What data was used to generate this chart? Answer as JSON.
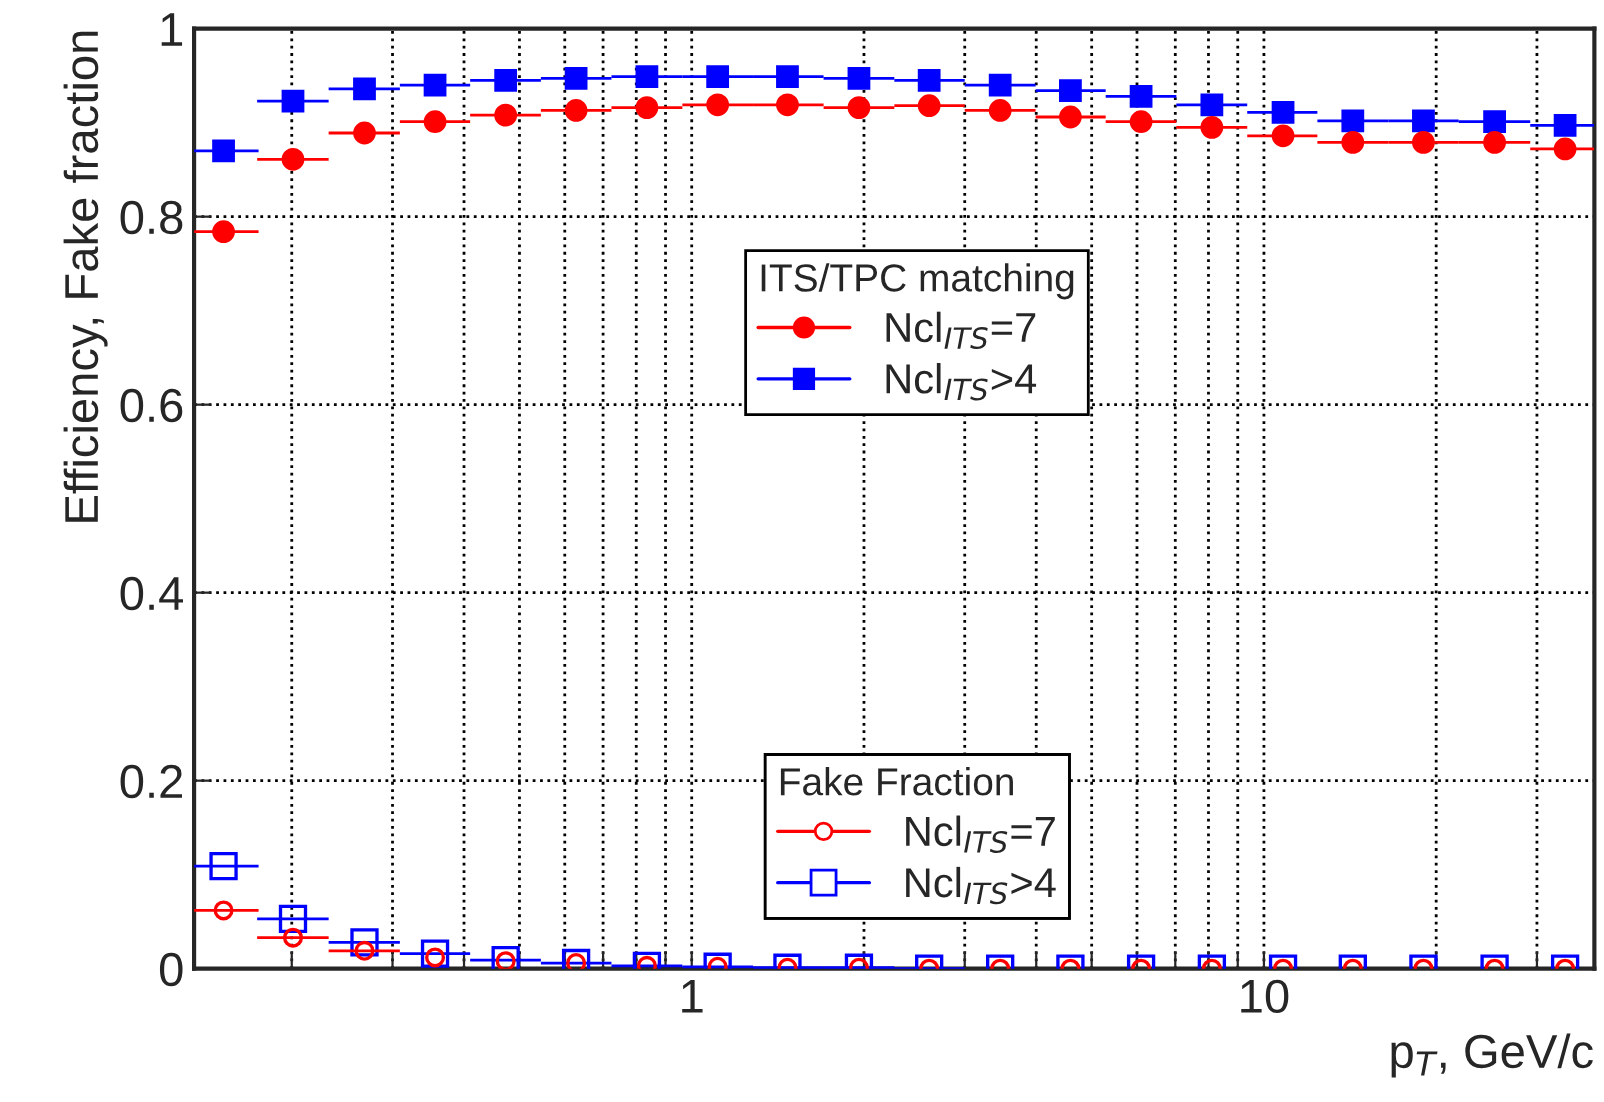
{
  "chart_data": {
    "type": "scatter",
    "xlabel": "p$_{T}$, GeV/c",
    "ylabel": "Efficiency, Fake fraction",
    "annotations": [
      "ITS/TPC matching",
      "Fake Fraction"
    ],
    "x": [
      0.152,
      0.201,
      0.268,
      0.356,
      0.473,
      0.628,
      0.835,
      1.11,
      1.47,
      1.96,
      2.6,
      3.46,
      4.59,
      6.1,
      8.11,
      10.8,
      14.3,
      19.0,
      25.3,
      33.6
    ],
    "series": [
      {
        "name": "Ncl$_{ITS}$=7",
        "color": "#ff0000",
        "marker": "circle",
        "values": [
          0.784,
          0.861,
          0.889,
          0.901,
          0.908,
          0.913,
          0.916,
          0.919,
          0.919,
          0.916,
          0.918,
          0.913,
          0.906,
          0.901,
          0.895,
          0.886,
          0.879,
          0.879,
          0.879,
          0.872
        ],
        "xerrors": [
          [
            0.135,
            0.175
          ],
          [
            0.174,
            0.232
          ],
          [
            0.232,
            0.309
          ],
          [
            0.309,
            0.41
          ],
          [
            0.41,
            0.545
          ],
          [
            0.545,
            0.724
          ],
          [
            0.724,
            0.963
          ],
          [
            0.963,
            1.28
          ],
          [
            1.28,
            1.7
          ],
          [
            1.7,
            2.26
          ],
          [
            2.26,
            3.0
          ],
          [
            3.0,
            3.99
          ],
          [
            3.99,
            5.29
          ],
          [
            5.29,
            7.03
          ],
          [
            7.03,
            9.35
          ],
          [
            9.35,
            12.4
          ],
          [
            12.4,
            16.5
          ],
          [
            16.5,
            21.9
          ],
          [
            21.9,
            29.2
          ],
          [
            29.2,
            37.8
          ]
        ]
      },
      {
        "name": "Ncl$_{ITS}$>4",
        "color": "#0000ff",
        "marker": "square",
        "values": [
          0.87,
          0.923,
          0.936,
          0.94,
          0.945,
          0.947,
          0.949,
          0.949,
          0.949,
          0.947,
          0.945,
          0.94,
          0.934,
          0.928,
          0.919,
          0.911,
          0.902,
          0.902,
          0.901,
          0.897
        ],
        "xerrors": [
          [
            0.135,
            0.175
          ],
          [
            0.174,
            0.232
          ],
          [
            0.232,
            0.309
          ],
          [
            0.309,
            0.41
          ],
          [
            0.41,
            0.545
          ],
          [
            0.545,
            0.724
          ],
          [
            0.724,
            0.963
          ],
          [
            0.963,
            1.28
          ],
          [
            1.28,
            1.7
          ],
          [
            1.7,
            2.26
          ],
          [
            2.26,
            3.0
          ],
          [
            3.0,
            3.99
          ],
          [
            3.99,
            5.29
          ],
          [
            5.29,
            7.03
          ],
          [
            7.03,
            9.35
          ],
          [
            9.35,
            12.4
          ],
          [
            12.4,
            16.5
          ],
          [
            16.5,
            21.9
          ],
          [
            21.9,
            29.2
          ],
          [
            29.2,
            37.8
          ]
        ]
      },
      {
        "name": "Ncl$_{ITS}$=7",
        "color": "#ff0000",
        "marker": "circle",
        "values": [
          0.062,
          0.033,
          0.019,
          0.012,
          0.008,
          0.006,
          0.003,
          0.002,
          0.001,
          0.001,
          0,
          0,
          0,
          0,
          0,
          0,
          0,
          0,
          0,
          0
        ],
        "xerrors": [
          [
            0.135,
            0.175
          ],
          [
            0.174,
            0.232
          ],
          [
            0.232,
            0.309
          ],
          null,
          null,
          null,
          null,
          null,
          null,
          null,
          null,
          null,
          null,
          null,
          null,
          null,
          null,
          null,
          null,
          null
        ]
      },
      {
        "name": "Ncl$_{ITS}$>4",
        "color": "#0000ff",
        "marker": "square",
        "values": [
          0.109,
          0.053,
          0.028,
          0.016,
          0.009,
          0.006,
          0.003,
          0.002,
          0.001,
          0.001,
          0,
          0,
          0,
          0,
          0,
          0,
          0,
          0,
          0,
          0
        ],
        "xerrors": [
          [
            0.135,
            0.175
          ],
          [
            0.174,
            0.232
          ],
          [
            0.232,
            0.309
          ],
          [
            0.309,
            0.41
          ],
          [
            0.41,
            0.545
          ],
          [
            0.545,
            0.724
          ],
          [
            0.724,
            0.963
          ],
          [
            0.963,
            1.28
          ],
          [
            1.28,
            1.7
          ],
          [
            1.7,
            2.26
          ],
          [
            2.26,
            3.0
          ],
          null,
          null,
          null,
          null,
          null,
          null,
          null,
          null,
          null
        ]
      }
    ],
    "log": "x",
    "xlim": [
      0.135,
      37.8
    ],
    "xticks": [
      {
        "value": 0.2,
        "label": null
      },
      {
        "value": 0.3,
        "label": null
      },
      {
        "value": 0.4,
        "label": null
      },
      {
        "value": 0.5,
        "label": null
      },
      {
        "value": 0.6,
        "label": null
      },
      {
        "value": 0.7,
        "label": null
      },
      {
        "value": 0.8,
        "label": null
      },
      {
        "value": 0.9,
        "label": null
      },
      1,
      {
        "value": 2,
        "label": null
      },
      {
        "value": 3,
        "label": null
      },
      {
        "value": 4,
        "label": null
      },
      {
        "value": 5,
        "label": null
      },
      {
        "value": 6,
        "label": null
      },
      {
        "value": 7,
        "label": null
      },
      {
        "value": 8,
        "label": null
      },
      {
        "value": 9,
        "label": null
      },
      10,
      {
        "value": 20,
        "label": null
      },
      {
        "value": 30,
        "label": null
      }
    ],
    "ylim": [
      0,
      1
    ],
    "yticks": [
      0,
      0.2,
      0.4,
      0.6,
      0.8,
      1
    ],
    "grid": true,
    "legend": "right"
  }
}
